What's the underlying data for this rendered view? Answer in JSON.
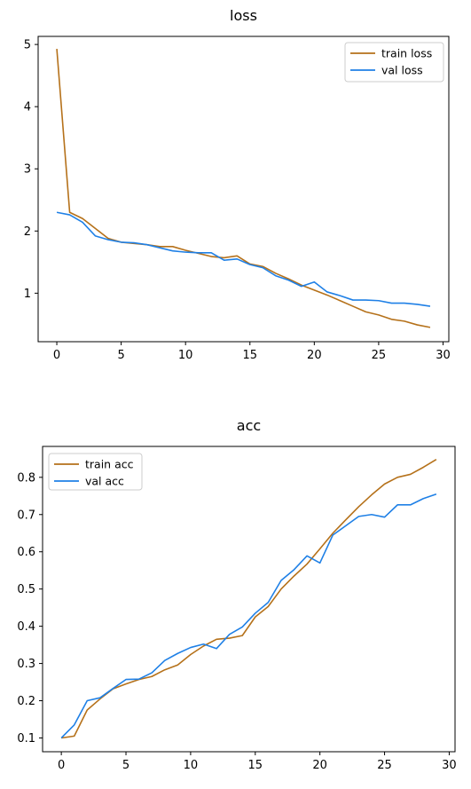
{
  "chart_data": [
    {
      "type": "line",
      "title": "loss",
      "xlabel": "",
      "ylabel": "",
      "xlim": [
        -1.45,
        30.45
      ],
      "ylim": [
        0.22,
        5.13
      ],
      "xticks": [
        0,
        5,
        10,
        15,
        20,
        25,
        30
      ],
      "yticks": [
        1,
        2,
        3,
        4,
        5
      ],
      "legend_position": "upper right",
      "x": [
        0,
        1,
        2,
        3,
        4,
        5,
        6,
        7,
        8,
        9,
        10,
        11,
        12,
        13,
        14,
        15,
        16,
        17,
        18,
        19,
        20,
        21,
        22,
        23,
        24,
        25,
        26,
        27,
        28,
        29
      ],
      "series": [
        {
          "name": "train loss",
          "color": "#b5711a",
          "values": [
            4.93,
            2.3,
            2.2,
            2.04,
            1.88,
            1.82,
            1.8,
            1.78,
            1.75,
            1.75,
            1.69,
            1.64,
            1.59,
            1.57,
            1.6,
            1.47,
            1.43,
            1.32,
            1.23,
            1.13,
            1.05,
            0.97,
            0.88,
            0.79,
            0.7,
            0.65,
            0.58,
            0.55,
            0.49,
            0.45
          ]
        },
        {
          "name": "val loss",
          "color": "#1f80e6",
          "values": [
            2.3,
            2.26,
            2.14,
            1.92,
            1.86,
            1.82,
            1.81,
            1.78,
            1.73,
            1.68,
            1.66,
            1.65,
            1.65,
            1.53,
            1.55,
            1.46,
            1.41,
            1.28,
            1.21,
            1.11,
            1.18,
            1.02,
            0.96,
            0.89,
            0.89,
            0.88,
            0.84,
            0.84,
            0.82,
            0.79
          ]
        }
      ]
    },
    {
      "type": "line",
      "title": "acc",
      "xlabel": "",
      "ylabel": "",
      "xlim": [
        -1.45,
        30.45
      ],
      "ylim": [
        0.063,
        0.883
      ],
      "xticks": [
        0,
        5,
        10,
        15,
        20,
        25,
        30
      ],
      "yticks": [
        0.1,
        0.2,
        0.3,
        0.4,
        0.5,
        0.6,
        0.7,
        0.8
      ],
      "legend_position": "upper left",
      "x": [
        0,
        1,
        2,
        3,
        4,
        5,
        6,
        7,
        8,
        9,
        10,
        11,
        12,
        13,
        14,
        15,
        16,
        17,
        18,
        19,
        20,
        21,
        22,
        23,
        24,
        25,
        26,
        27,
        28,
        29
      ],
      "series": [
        {
          "name": "train acc",
          "color": "#b5711a",
          "values": [
            0.1,
            0.105,
            0.175,
            0.205,
            0.232,
            0.245,
            0.257,
            0.265,
            0.283,
            0.296,
            0.324,
            0.347,
            0.365,
            0.368,
            0.375,
            0.425,
            0.453,
            0.5,
            0.535,
            0.567,
            0.608,
            0.65,
            0.686,
            0.721,
            0.753,
            0.782,
            0.8,
            0.808,
            0.827,
            0.848
          ]
        },
        {
          "name": "val acc",
          "color": "#1f80e6",
          "values": [
            0.1,
            0.135,
            0.2,
            0.208,
            0.233,
            0.257,
            0.258,
            0.275,
            0.308,
            0.327,
            0.343,
            0.352,
            0.34,
            0.378,
            0.398,
            0.435,
            0.464,
            0.523,
            0.552,
            0.589,
            0.57,
            0.645,
            0.67,
            0.695,
            0.7,
            0.693,
            0.726,
            0.726,
            0.743,
            0.755
          ]
        }
      ]
    }
  ]
}
